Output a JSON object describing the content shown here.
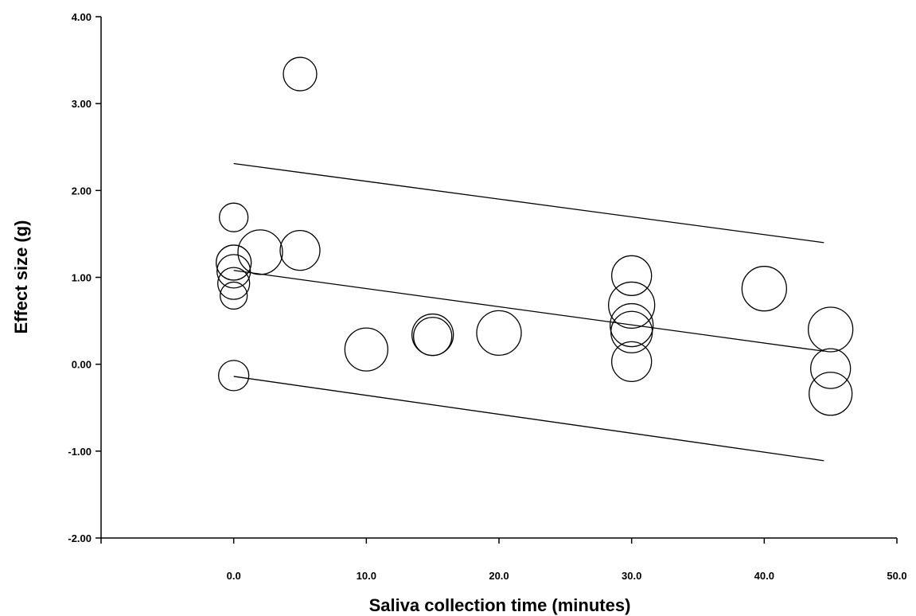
{
  "chart_data": {
    "type": "scatter",
    "title": "",
    "xlabel": "Saliva collection time (minutes)",
    "ylabel": "Effect size (g)",
    "xlim": [
      -10,
      50
    ],
    "ylim": [
      -2,
      4
    ],
    "x_ticks": [
      0,
      10,
      20,
      30,
      40,
      50
    ],
    "x_tick_labels": [
      "0.0",
      "10.0",
      "20.0",
      "30.0",
      "40.0",
      "50.0"
    ],
    "y_ticks": [
      -2,
      -1,
      0,
      1,
      2,
      3,
      4
    ],
    "y_tick_labels": [
      "-2.00",
      "-1.00",
      "0.00",
      "1.00",
      "2.00",
      "3.00",
      "4.00"
    ],
    "grid": false,
    "points": [
      {
        "x": 0,
        "y": 1.69,
        "r": 18
      },
      {
        "x": 0,
        "y": 1.17,
        "r": 22
      },
      {
        "x": 0,
        "y": 1.07,
        "r": 21
      },
      {
        "x": 0,
        "y": 0.93,
        "r": 20
      },
      {
        "x": 0,
        "y": 0.79,
        "r": 17
      },
      {
        "x": 0,
        "y": -0.13,
        "r": 19
      },
      {
        "x": 2,
        "y": 1.29,
        "r": 28
      },
      {
        "x": 5,
        "y": 3.34,
        "r": 21
      },
      {
        "x": 5,
        "y": 1.31,
        "r": 25
      },
      {
        "x": 10,
        "y": 0.17,
        "r": 27
      },
      {
        "x": 15,
        "y": 0.34,
        "r": 26
      },
      {
        "x": 15,
        "y": 0.32,
        "r": 24
      },
      {
        "x": 20,
        "y": 0.36,
        "r": 28
      },
      {
        "x": 30,
        "y": 1.02,
        "r": 25
      },
      {
        "x": 30,
        "y": 0.68,
        "r": 29
      },
      {
        "x": 30,
        "y": 0.45,
        "r": 27
      },
      {
        "x": 30,
        "y": 0.37,
        "r": 26
      },
      {
        "x": 30,
        "y": 0.03,
        "r": 25
      },
      {
        "x": 40,
        "y": 0.87,
        "r": 28
      },
      {
        "x": 45,
        "y": 0.4,
        "r": 28
      },
      {
        "x": 45,
        "y": -0.05,
        "r": 25
      },
      {
        "x": 45,
        "y": -0.34,
        "r": 27
      }
    ],
    "lines": [
      {
        "name": "upper",
        "x": [
          0,
          44.5
        ],
        "y": [
          2.31,
          1.4
        ]
      },
      {
        "name": "regression",
        "x": [
          0,
          44.5
        ],
        "y": [
          1.08,
          0.15
        ]
      },
      {
        "name": "lower",
        "x": [
          0,
          44.5
        ],
        "y": [
          -0.14,
          -1.11
        ]
      }
    ]
  }
}
